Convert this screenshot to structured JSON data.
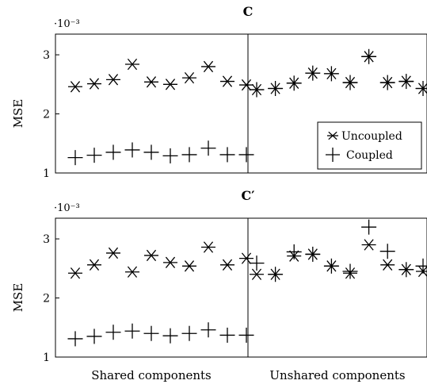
{
  "chart_data": [
    {
      "type": "scatter",
      "title": "C",
      "ylabel": "MSE",
      "y_scale_label": "·10⁻³",
      "ylim": [
        1.0,
        3.35
      ],
      "yticks": [
        1,
        2,
        3
      ],
      "legend": {
        "placement": "bottom-right of right panel",
        "entries": [
          "Uncoupled",
          "Coupled"
        ]
      },
      "series": [
        {
          "name": "Uncoupled",
          "marker": "asterisk",
          "shared": [
            2.46,
            2.51,
            2.58,
            2.84,
            2.54,
            2.5,
            2.61,
            2.8,
            2.55,
            2.49
          ],
          "unshared": [
            2.41,
            2.43,
            2.52,
            2.69,
            2.68,
            2.53,
            2.97,
            2.53,
            2.55,
            2.43
          ]
        },
        {
          "name": "Coupled",
          "marker": "plus",
          "shared": [
            1.26,
            1.3,
            1.35,
            1.39,
            1.35,
            1.29,
            1.31,
            1.42,
            1.31,
            1.31
          ],
          "unshared": [
            2.41,
            2.43,
            2.52,
            2.69,
            2.68,
            2.53,
            2.97,
            2.53,
            2.55,
            2.43
          ]
        }
      ]
    },
    {
      "type": "scatter",
      "title": "C′",
      "ylabel": "MSE",
      "y_scale_label": "·10⁻³",
      "ylim": [
        1.0,
        3.35
      ],
      "yticks": [
        1,
        2,
        3
      ],
      "series": [
        {
          "name": "Uncoupled",
          "marker": "asterisk",
          "shared": [
            2.42,
            2.56,
            2.76,
            2.44,
            2.72,
            2.6,
            2.54,
            2.86,
            2.56,
            2.67
          ],
          "unshared": [
            2.4,
            2.4,
            2.71,
            2.74,
            2.54,
            2.42,
            2.9,
            2.56,
            2.48,
            2.45
          ]
        },
        {
          "name": "Coupled",
          "marker": "plus",
          "shared": [
            1.31,
            1.35,
            1.42,
            1.44,
            1.4,
            1.36,
            1.4,
            1.46,
            1.37,
            1.37
          ],
          "unshared": [
            2.59,
            2.4,
            2.78,
            2.74,
            2.54,
            2.45,
            3.2,
            2.79,
            2.48,
            2.54
          ]
        }
      ]
    }
  ],
  "xaxis": {
    "left_label": "Shared components",
    "right_label": "Unshared components"
  }
}
